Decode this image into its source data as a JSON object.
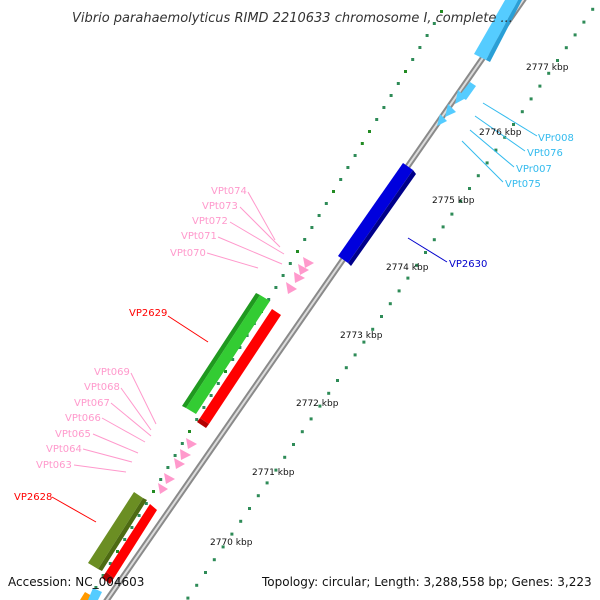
{
  "title": "Vibrio parahaemolyticus RIMD 2210633 chromosome I, complete ...",
  "footer": {
    "accession": "Accession: NC_004603",
    "stats": "Topology: circular; Length: 3,288,558 bp; Genes: 3,223"
  },
  "ticks": [
    {
      "label": "2770 kbp"
    },
    {
      "label": "2771 kbp"
    },
    {
      "label": "2772 kbp"
    },
    {
      "label": "2773 kbp"
    },
    {
      "label": "2774 kbp"
    },
    {
      "label": "2775 kbp"
    },
    {
      "label": "2776 kbp"
    },
    {
      "label": "2777 kbp"
    }
  ],
  "colors": {
    "backbone": "#9a9a9a",
    "red_gene": "#ff0000",
    "green_gene": "#33cc33",
    "olive_gene": "#6b8e23",
    "blue_gene": "#0000dd",
    "cyan_gene": "#55ccff",
    "trna": "#ff99cc",
    "tick_major": "#228b22",
    "tick_minor": "#2e8b57"
  },
  "genes": [
    {
      "name": "VP2628",
      "color": "#ff0000"
    },
    {
      "name": "VP2629",
      "color": "#ff0000"
    },
    {
      "name": "VP2630",
      "color": "#0000cc"
    }
  ],
  "trna_labels_lower": [
    "VPt063",
    "VPt064",
    "VPt065",
    "VPt066",
    "VPt067",
    "VPt068",
    "VPt069"
  ],
  "trna_labels_upper": [
    "VPt070",
    "VPt071",
    "VPt072",
    "VPt073",
    "VPt074"
  ],
  "rrna_labels": [
    "VPr008",
    "VPt076",
    "VPr007",
    "VPt075"
  ]
}
